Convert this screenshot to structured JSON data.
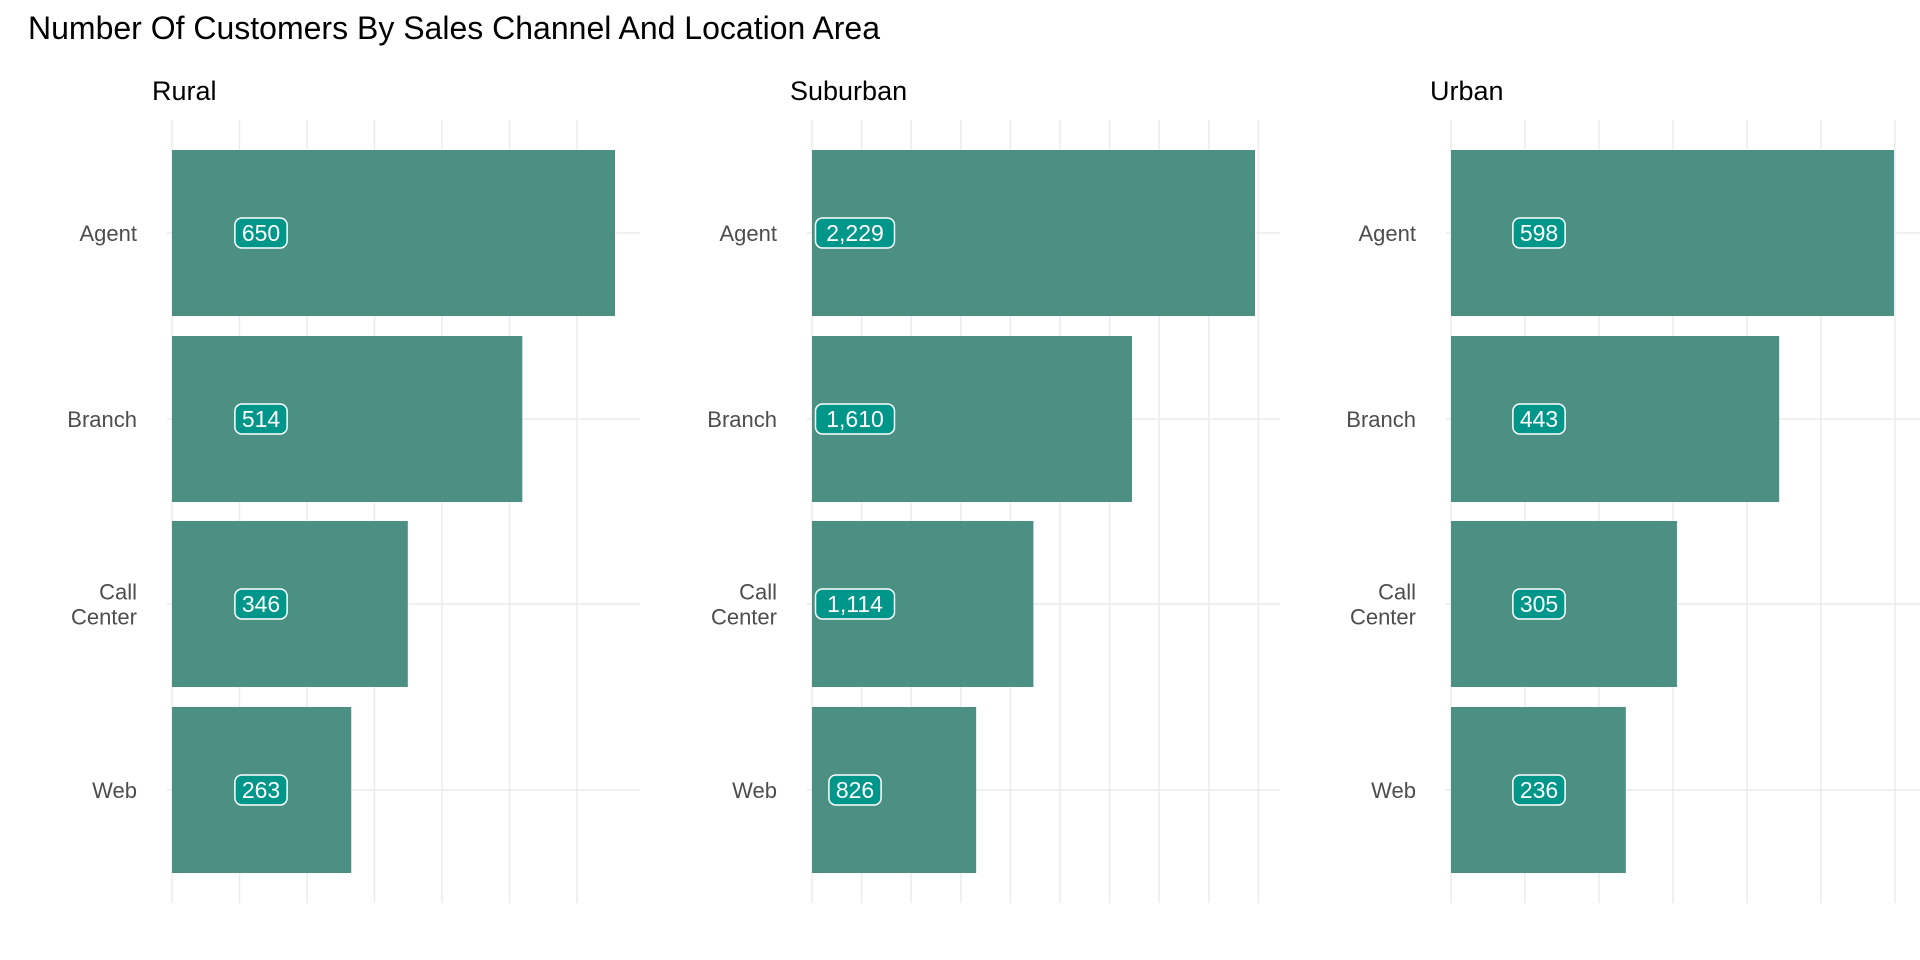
{
  "chart_data": {
    "type": "bar",
    "orientation": "horizontal",
    "layout": "facets",
    "title": "Number Of Customers By Sales Channel And Location Area",
    "xlabel": "",
    "ylabel": "",
    "grid": true,
    "bar_color": "#4C9084",
    "label_color": "#00968A",
    "categories": [
      "Agent",
      "Branch",
      "Call Center",
      "Web"
    ],
    "category_labels": [
      [
        "Agent"
      ],
      [
        "Branch"
      ],
      [
        "Call",
        "Center"
      ],
      [
        "Web"
      ]
    ],
    "facets": [
      {
        "name": "Rural",
        "values": [
          650,
          514,
          346,
          263
        ],
        "value_labels": [
          "650",
          "514",
          "346",
          "263"
        ],
        "xlim": [
          0,
          650
        ]
      },
      {
        "name": "Suburban",
        "values": [
          2229,
          1610,
          1114,
          826
        ],
        "value_labels": [
          "2,229",
          "1,610",
          "1,114",
          "826"
        ],
        "xlim": [
          0,
          2229
        ]
      },
      {
        "name": "Urban",
        "values": [
          598,
          443,
          305,
          236
        ],
        "value_labels": [
          "598",
          "443",
          "305",
          "236"
        ],
        "xlim": [
          0,
          598
        ]
      }
    ]
  }
}
